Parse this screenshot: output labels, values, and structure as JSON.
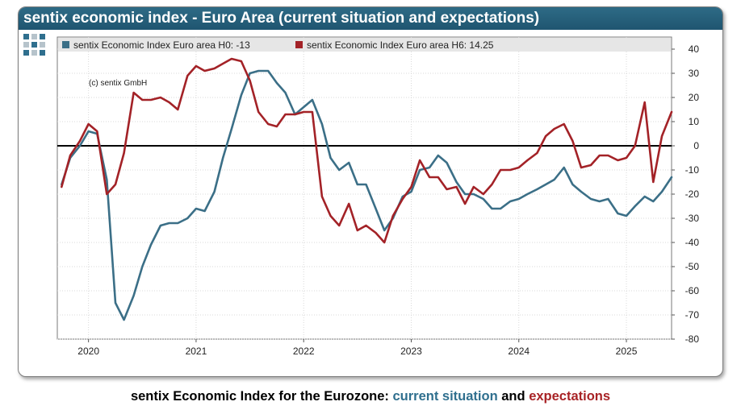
{
  "title": "sentix economic index - Euro Area (current situation and expectations)",
  "copyright": "(c) sentix GmbH",
  "caption": {
    "prefix": "sentix Economic Index for the Eurozone: ",
    "current": "current situation",
    "connector": " and ",
    "expectations": "expectations"
  },
  "colors": {
    "blue": "#3b6f87",
    "red": "#a32227",
    "zero_line": "#000000",
    "title_bar": "#24607c"
  },
  "chart_data": {
    "type": "line",
    "legend_position": "top-left",
    "grid": true,
    "xlim": [
      2019.71,
      2025.42
    ],
    "ylim": [
      -80,
      45
    ],
    "y_ticks": [
      40,
      30,
      20,
      10,
      0,
      -10,
      -20,
      -30,
      -40,
      -50,
      -60,
      -70,
      -80
    ],
    "x_ticks": [
      {
        "label": "2020",
        "value": 2020.0
      },
      {
        "label": "2021",
        "value": 2021.0
      },
      {
        "label": "2022",
        "value": 2022.0
      },
      {
        "label": "2023",
        "value": 2023.0
      },
      {
        "label": "2024",
        "value": 2024.0
      },
      {
        "label": "2025",
        "value": 2025.0
      }
    ],
    "x_labels_shown": [
      "2020",
      "2021",
      "2022",
      "2023",
      "2024",
      "2025"
    ],
    "series": [
      {
        "name": "sentix Economic Index Euro area H0: -13",
        "color": "#3b6f87",
        "x": [
          2019.75,
          2019.83,
          2019.92,
          2020.0,
          2020.08,
          2020.17,
          2020.25,
          2020.33,
          2020.42,
          2020.5,
          2020.58,
          2020.67,
          2020.75,
          2020.83,
          2020.92,
          2021.0,
          2021.08,
          2021.17,
          2021.25,
          2021.33,
          2021.42,
          2021.5,
          2021.58,
          2021.67,
          2021.75,
          2021.83,
          2021.92,
          2022.0,
          2022.08,
          2022.17,
          2022.25,
          2022.33,
          2022.42,
          2022.5,
          2022.58,
          2022.67,
          2022.75,
          2022.83,
          2022.92,
          2023.0,
          2023.08,
          2023.17,
          2023.25,
          2023.33,
          2023.42,
          2023.5,
          2023.58,
          2023.67,
          2023.75,
          2023.83,
          2023.92,
          2024.0,
          2024.08,
          2024.17,
          2024.25,
          2024.33,
          2024.42,
          2024.5,
          2024.58,
          2024.67,
          2024.75,
          2024.83,
          2024.92,
          2025.0,
          2025.08,
          2025.17,
          2025.25,
          2025.33,
          2025.42
        ],
        "y": [
          -16,
          -5,
          0,
          6,
          5,
          -14,
          -65,
          -72,
          -62,
          -50,
          -41,
          -33,
          -32,
          -32,
          -30,
          -26,
          -27,
          -19,
          -5,
          7,
          21,
          30,
          31,
          31,
          26,
          22,
          13,
          16,
          19,
          9,
          -5,
          -10,
          -7,
          -16,
          -16,
          -26,
          -35,
          -30,
          -21,
          -19,
          -10,
          -9,
          -4,
          -7,
          -15,
          -20,
          -20,
          -22,
          -26,
          -26,
          -23,
          -22,
          -20,
          -18,
          -16,
          -14,
          -9,
          -16,
          -19,
          -22,
          -23,
          -22,
          -28,
          -29,
          -25,
          -21,
          -23,
          -19,
          -13
        ]
      },
      {
        "name": "sentix Economic Index Euro area H6: 14.25",
        "color": "#a32227",
        "x": [
          2019.75,
          2019.83,
          2019.92,
          2020.0,
          2020.08,
          2020.17,
          2020.25,
          2020.33,
          2020.42,
          2020.5,
          2020.58,
          2020.67,
          2020.75,
          2020.83,
          2020.92,
          2021.0,
          2021.08,
          2021.17,
          2021.25,
          2021.33,
          2021.42,
          2021.5,
          2021.58,
          2021.67,
          2021.75,
          2021.83,
          2021.92,
          2022.0,
          2022.08,
          2022.17,
          2022.25,
          2022.33,
          2022.42,
          2022.5,
          2022.58,
          2022.67,
          2022.75,
          2022.83,
          2022.92,
          2023.0,
          2023.08,
          2023.17,
          2023.25,
          2023.33,
          2023.42,
          2023.5,
          2023.58,
          2023.67,
          2023.75,
          2023.83,
          2023.92,
          2024.0,
          2024.08,
          2024.17,
          2024.25,
          2024.33,
          2024.42,
          2024.5,
          2024.58,
          2024.67,
          2024.75,
          2024.83,
          2024.92,
          2025.0,
          2025.08,
          2025.17,
          2025.25,
          2025.33,
          2025.42
        ],
        "y": [
          -17,
          -4,
          2,
          9,
          6,
          -20,
          -16,
          -3,
          22,
          19,
          19,
          20,
          18,
          15,
          29,
          33,
          31,
          32,
          34,
          36,
          35,
          27,
          14,
          9,
          8,
          13,
          13,
          14,
          14,
          -21,
          -29,
          -33,
          -24,
          -35,
          -33,
          -36,
          -40,
          -29,
          -22,
          -17,
          -6,
          -13,
          -13,
          -18,
          -17,
          -24,
          -17,
          -20,
          -16,
          -10,
          -10,
          -9,
          -6,
          -3,
          4,
          7,
          9,
          2,
          -9,
          -8,
          -4,
          -4,
          -6,
          -5,
          0,
          18,
          -15,
          4,
          14
        ]
      }
    ]
  }
}
